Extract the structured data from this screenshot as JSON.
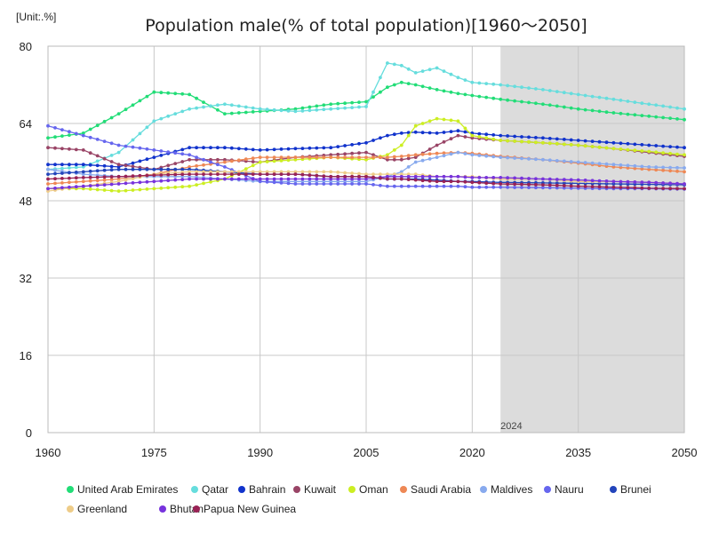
{
  "chart_data": {
    "type": "line",
    "title": "Population male(% of total population)[1960～2050]",
    "unit_label": "[Unit:.%]",
    "xlabel": "",
    "ylabel": "",
    "x_range": [
      1960,
      2050
    ],
    "ylim": [
      0,
      80
    ],
    "x_ticks": [
      "1960",
      "1975",
      "1990",
      "2005",
      "2020",
      "2035",
      "2050"
    ],
    "y_ticks": [
      "0",
      "16",
      "32",
      "48",
      "64",
      "80"
    ],
    "forecast_start_label": "2024",
    "forecast_start": 2024,
    "grid": true,
    "legend_position": "bottom",
    "x": [
      1960,
      1965,
      1970,
      1975,
      1980,
      1985,
      1990,
      1995,
      2000,
      2005,
      2008,
      2010,
      2012,
      2015,
      2018,
      2020,
      2024,
      2030,
      2035,
      2040,
      2045,
      2050
    ],
    "series": [
      {
        "name": "United Arab Emirates",
        "color": "#22dd77",
        "values": [
          61.0,
          62.0,
          66.0,
          70.5,
          70.0,
          66.0,
          66.5,
          67.0,
          68.0,
          68.5,
          71.5,
          72.5,
          72.0,
          71.0,
          70.2,
          69.8,
          69.0,
          68.0,
          67.0,
          66.2,
          65.5,
          64.8
        ]
      },
      {
        "name": "Qatar",
        "color": "#66dddd",
        "values": [
          54.5,
          55.0,
          58.0,
          64.5,
          67.0,
          68.0,
          67.0,
          66.5,
          67.0,
          67.5,
          76.5,
          76.0,
          74.5,
          75.5,
          73.5,
          72.5,
          72.0,
          71.0,
          70.0,
          69.0,
          68.0,
          67.0
        ]
      },
      {
        "name": "Bahrain",
        "color": "#1133cc",
        "values": [
          55.5,
          55.5,
          55.0,
          57.0,
          59.0,
          59.0,
          58.5,
          58.8,
          59.0,
          60.0,
          61.5,
          62.0,
          62.2,
          62.0,
          62.5,
          62.0,
          61.5,
          61.0,
          60.5,
          60.0,
          59.5,
          59.0
        ]
      },
      {
        "name": "Kuwait",
        "color": "#994466",
        "values": [
          59.0,
          58.5,
          55.5,
          54.5,
          56.5,
          56.5,
          56.0,
          57.0,
          57.5,
          58.0,
          56.5,
          56.5,
          57.0,
          59.5,
          61.5,
          61.0,
          60.5,
          60.0,
          59.5,
          58.8,
          58.0,
          57.2
        ]
      },
      {
        "name": "Oman",
        "color": "#ccee22",
        "values": [
          50.5,
          50.5,
          50.0,
          50.5,
          51.0,
          52.5,
          56.0,
          56.5,
          57.0,
          56.5,
          57.5,
          59.5,
          63.5,
          65.0,
          64.5,
          61.5,
          60.5,
          60.0,
          59.5,
          58.8,
          58.2,
          57.5
        ]
      },
      {
        "name": "Saudi Arabia",
        "color": "#ee8855",
        "values": [
          51.5,
          52.0,
          52.5,
          53.5,
          55.0,
          56.0,
          57.0,
          57.0,
          57.0,
          57.0,
          57.0,
          57.2,
          57.5,
          57.8,
          58.0,
          57.8,
          57.2,
          56.5,
          55.8,
          55.0,
          54.5,
          54.0
        ]
      },
      {
        "name": "Maldives",
        "color": "#88aaee",
        "values": [
          54.5,
          53.5,
          53.0,
          53.0,
          53.0,
          52.5,
          52.0,
          52.0,
          52.0,
          52.0,
          53.0,
          54.0,
          56.0,
          57.0,
          58.0,
          57.5,
          57.0,
          56.5,
          56.0,
          55.5,
          55.0,
          54.8
        ]
      },
      {
        "name": "Nauru",
        "color": "#6666ee",
        "values": [
          63.5,
          61.5,
          59.5,
          58.5,
          57.5,
          55.0,
          52.0,
          51.5,
          51.5,
          51.5,
          51.0,
          51.0,
          51.0,
          51.0,
          51.0,
          50.8,
          50.8,
          50.7,
          50.6,
          50.5,
          50.5,
          50.4
        ]
      },
      {
        "name": "Brunei",
        "color": "#2244bb",
        "values": [
          53.5,
          54.0,
          54.5,
          54.5,
          54.5,
          54.0,
          53.5,
          53.5,
          53.0,
          53.0,
          52.5,
          52.5,
          52.5,
          52.3,
          52.0,
          52.0,
          51.8,
          51.7,
          51.6,
          51.5,
          51.4,
          51.3
        ]
      },
      {
        "name": "Greenland",
        "color": "#eecc88",
        "values": [
          50.0,
          51.0,
          52.0,
          53.5,
          54.0,
          54.0,
          54.0,
          54.0,
          54.0,
          53.5,
          53.5,
          53.5,
          53.5,
          53.0,
          53.0,
          53.0,
          52.5,
          52.5,
          52.0,
          52.0,
          51.8,
          51.5
        ]
      },
      {
        "name": "Bhutan",
        "color": "#7733dd",
        "values": [
          50.5,
          51.0,
          51.5,
          52.0,
          52.5,
          52.5,
          52.5,
          52.5,
          52.5,
          52.5,
          53.0,
          53.0,
          53.0,
          53.0,
          53.0,
          52.8,
          52.8,
          52.5,
          52.3,
          52.0,
          51.8,
          51.5
        ]
      },
      {
        "name": "Papua New Guinea",
        "color": "#992255",
        "values": [
          52.5,
          52.8,
          53.0,
          53.3,
          53.5,
          53.5,
          53.5,
          53.5,
          53.0,
          53.0,
          52.5,
          52.5,
          52.3,
          52.0,
          52.0,
          51.8,
          51.5,
          51.3,
          51.0,
          50.8,
          50.6,
          50.5
        ]
      }
    ]
  }
}
